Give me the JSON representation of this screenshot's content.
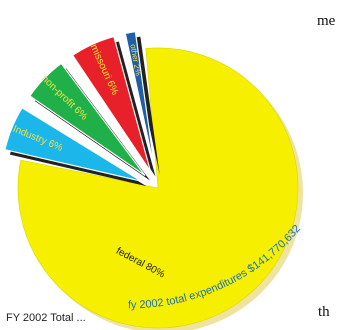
{
  "chart_data": {
    "type": "pie",
    "exploded": true,
    "slices": [
      {
        "label": "federal 80%",
        "value": 80,
        "color": "#f7ef00",
        "text_color": "#1a1a1a"
      },
      {
        "label": "Industry 6%",
        "value": 6,
        "color": "#1bb6ea",
        "text_color": "#f4e23a"
      },
      {
        "label": "non-profit 6%",
        "value": 6,
        "color": "#20b04a",
        "text_color": "#f4e23a"
      },
      {
        "label": "missouri 6%",
        "value": 6,
        "color": "#e8202a",
        "text_color": "#f4e23a"
      },
      {
        "label": "other 2%",
        "value": 2,
        "color": "#1e5fa8",
        "text_color": "#f4e23a"
      }
    ],
    "annotation": "fy 2002 total expenditures $141,770,632"
  },
  "page": {
    "text_fragments": [
      "me",
      "th"
    ],
    "caption": "FY 2002 Total ..."
  }
}
